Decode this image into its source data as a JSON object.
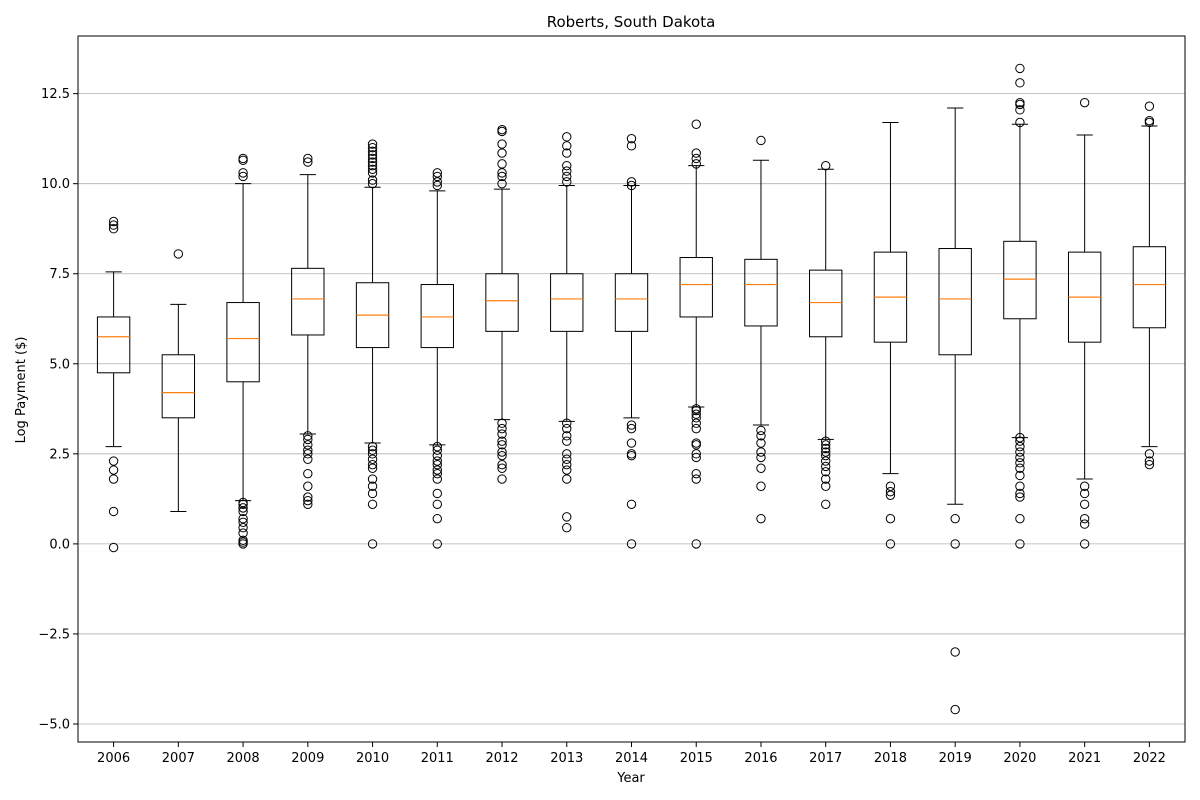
{
  "chart_data": {
    "type": "box",
    "title": "Roberts, South Dakota",
    "xlabel": "Year",
    "ylabel": "Log Payment ($)",
    "ylim": [
      -5.5,
      14.1
    ],
    "yticks": [
      -5.0,
      -2.5,
      0.0,
      2.5,
      5.0,
      7.5,
      10.0,
      12.5
    ],
    "ytick_labels": [
      "−5.0",
      "−2.5",
      "0.0",
      "2.5",
      "5.0",
      "7.5",
      "10.0",
      "12.5"
    ],
    "grid": "y",
    "colors": {
      "median": "#ff7f0e",
      "box": "#000000",
      "grid": "#b0b0b0"
    },
    "categories": [
      "2006",
      "2007",
      "2008",
      "2009",
      "2010",
      "2011",
      "2012",
      "2013",
      "2014",
      "2015",
      "2016",
      "2017",
      "2018",
      "2019",
      "2020",
      "2021",
      "2022"
    ],
    "boxes": [
      {
        "whislo": 2.7,
        "q1": 4.75,
        "med": 5.75,
        "q3": 6.3,
        "whishi": 7.55,
        "fliers": [
          -0.1,
          0.9,
          1.8,
          2.05,
          2.3,
          8.75,
          8.85,
          8.95
        ]
      },
      {
        "whislo": 0.9,
        "q1": 3.5,
        "med": 4.2,
        "q3": 5.25,
        "whishi": 6.65,
        "fliers": [
          8.05
        ]
      },
      {
        "whislo": 1.2,
        "q1": 4.5,
        "med": 5.7,
        "q3": 6.7,
        "whishi": 10.0,
        "fliers": [
          0.0,
          0.05,
          0.1,
          0.3,
          0.45,
          0.6,
          0.7,
          0.9,
          1.0,
          1.1,
          1.15,
          10.2,
          10.3,
          10.65,
          10.7
        ]
      },
      {
        "whislo": 3.05,
        "q1": 5.8,
        "med": 6.8,
        "q3": 7.65,
        "whishi": 10.25,
        "fliers": [
          1.1,
          1.2,
          1.3,
          1.6,
          1.95,
          2.35,
          2.5,
          2.6,
          2.75,
          2.9,
          3.0,
          10.6,
          10.7
        ]
      },
      {
        "whislo": 2.8,
        "q1": 5.45,
        "med": 6.35,
        "q3": 7.25,
        "whishi": 9.9,
        "fliers": [
          0.0,
          1.1,
          1.4,
          1.6,
          1.8,
          2.1,
          2.2,
          2.35,
          2.5,
          2.6,
          2.7,
          10.0,
          10.1,
          10.3,
          10.4,
          10.5,
          10.6,
          10.7,
          10.8,
          10.9,
          11.0,
          11.1
        ]
      },
      {
        "whislo": 2.75,
        "q1": 5.45,
        "med": 6.3,
        "q3": 7.2,
        "whishi": 9.8,
        "fliers": [
          0.0,
          0.7,
          1.1,
          1.4,
          1.8,
          1.95,
          2.05,
          2.2,
          2.3,
          2.45,
          2.6,
          2.7,
          9.95,
          10.05,
          10.2,
          10.3
        ]
      },
      {
        "whislo": 3.45,
        "q1": 5.9,
        "med": 6.75,
        "q3": 7.5,
        "whishi": 9.85,
        "fliers": [
          1.8,
          2.1,
          2.2,
          2.45,
          2.55,
          2.75,
          2.85,
          3.05,
          3.2,
          3.35,
          10.0,
          10.2,
          10.3,
          10.55,
          10.85,
          11.1,
          11.45,
          11.5
        ]
      },
      {
        "whislo": 3.4,
        "q1": 5.9,
        "med": 6.8,
        "q3": 7.5,
        "whishi": 9.95,
        "fliers": [
          0.45,
          0.75,
          1.8,
          2.05,
          2.2,
          2.35,
          2.5,
          2.85,
          3.0,
          3.2,
          3.35,
          10.05,
          10.2,
          10.35,
          10.5,
          10.85,
          11.05,
          11.3
        ]
      },
      {
        "whislo": 3.5,
        "q1": 5.9,
        "med": 6.8,
        "q3": 7.5,
        "whishi": 9.95,
        "fliers": [
          0.0,
          1.1,
          2.45,
          2.5,
          2.8,
          3.2,
          3.3,
          9.95,
          10.05,
          11.05,
          11.25
        ]
      },
      {
        "whislo": 3.8,
        "q1": 6.3,
        "med": 7.2,
        "q3": 7.95,
        "whishi": 10.5,
        "fliers": [
          0.0,
          1.8,
          1.95,
          2.4,
          2.5,
          2.75,
          2.8,
          3.2,
          3.35,
          3.5,
          3.6,
          3.7,
          3.75,
          10.55,
          10.7,
          10.85,
          11.65
        ]
      },
      {
        "whislo": 3.3,
        "q1": 6.05,
        "med": 7.2,
        "q3": 7.9,
        "whishi": 10.65,
        "fliers": [
          0.7,
          1.6,
          2.1,
          2.4,
          2.55,
          2.8,
          3.0,
          3.15,
          11.2
        ]
      },
      {
        "whislo": 2.9,
        "q1": 5.75,
        "med": 6.7,
        "q3": 7.6,
        "whishi": 10.4,
        "fliers": [
          1.1,
          1.6,
          1.8,
          2.0,
          2.15,
          2.3,
          2.45,
          2.55,
          2.65,
          2.75,
          2.85,
          10.5
        ]
      },
      {
        "whislo": 1.95,
        "q1": 5.6,
        "med": 6.85,
        "q3": 8.1,
        "whishi": 11.7,
        "fliers": [
          0.0,
          0.7,
          1.35,
          1.45,
          1.6
        ]
      },
      {
        "whislo": 1.1,
        "q1": 5.25,
        "med": 6.8,
        "q3": 8.2,
        "whishi": 12.1,
        "fliers": [
          -4.6,
          -3.0,
          0.0,
          0.7
        ]
      },
      {
        "whislo": 2.95,
        "q1": 6.25,
        "med": 7.35,
        "q3": 8.4,
        "whishi": 11.65,
        "fliers": [
          0.0,
          0.7,
          1.3,
          1.4,
          1.6,
          1.9,
          2.1,
          2.25,
          2.4,
          2.55,
          2.7,
          2.85,
          2.95,
          11.7,
          12.05,
          12.2,
          12.25,
          12.8,
          13.2
        ]
      },
      {
        "whislo": 1.8,
        "q1": 5.6,
        "med": 6.85,
        "q3": 8.1,
        "whishi": 11.35,
        "fliers": [
          0.0,
          0.55,
          0.7,
          1.1,
          1.4,
          1.6,
          12.25
        ]
      },
      {
        "whislo": 2.7,
        "q1": 6.0,
        "med": 7.2,
        "q3": 8.25,
        "whishi": 11.6,
        "fliers": [
          2.2,
          2.3,
          2.5,
          11.7,
          11.75,
          12.15
        ]
      }
    ]
  }
}
